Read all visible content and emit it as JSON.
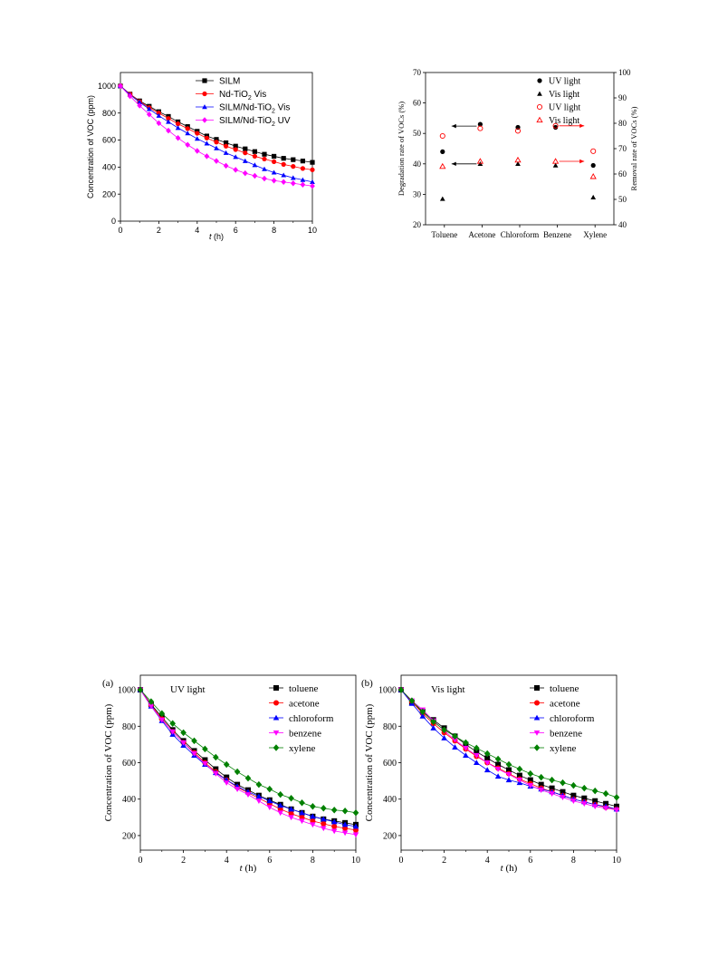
{
  "chart_data": [
    {
      "type": "line",
      "xlabel": "t (h)",
      "xlabel_var": "t",
      "xlabel_unit": " (h)",
      "ylabel": "Concentration of VOC (ppm)",
      "xlim": [
        0,
        10
      ],
      "ylim": [
        0,
        1100
      ],
      "xticks": [
        "0",
        "2",
        "4",
        "6",
        "8",
        "10"
      ],
      "yticks": [
        "0",
        "200",
        "400",
        "600",
        "800",
        "1000"
      ],
      "legend_position": "top-right",
      "x": [
        0,
        0.5,
        1,
        1.5,
        2,
        2.5,
        3,
        3.5,
        4,
        4.5,
        5,
        5.5,
        6,
        6.5,
        7,
        7.5,
        8,
        8.5,
        9,
        9.5,
        10
      ],
      "series": [
        {
          "name": "SILM",
          "color": "#000000",
          "marker": "square",
          "values": [
            1000,
            940,
            890,
            850,
            810,
            775,
            735,
            700,
            665,
            630,
            605,
            580,
            555,
            535,
            515,
            495,
            480,
            465,
            455,
            445,
            435
          ]
        },
        {
          "name": "Nd-TiO2 Vis",
          "label_parts": [
            "Nd-TiO",
            "2",
            " Vis"
          ],
          "color": "#ff0000",
          "marker": "circle",
          "values": [
            1000,
            940,
            885,
            840,
            800,
            760,
            720,
            685,
            650,
            615,
            585,
            555,
            530,
            505,
            480,
            460,
            440,
            420,
            405,
            390,
            380
          ]
        },
        {
          "name": "SILM/Nd-TiO2 Vis",
          "label_parts": [
            "SILM/Nd-TiO",
            "2",
            " Vis"
          ],
          "color": "#0000ff",
          "marker": "triangle",
          "values": [
            1000,
            935,
            880,
            830,
            780,
            735,
            690,
            650,
            610,
            575,
            540,
            505,
            475,
            445,
            415,
            385,
            360,
            340,
            320,
            305,
            290
          ]
        },
        {
          "name": "SILM/Nd-TiO2 UV",
          "label_parts": [
            "SILM/Nd-TiO",
            "2",
            " UV"
          ],
          "color": "#ff00ff",
          "marker": "diamond",
          "values": [
            1000,
            925,
            855,
            790,
            725,
            670,
            615,
            565,
            520,
            480,
            445,
            410,
            380,
            355,
            335,
            315,
            300,
            290,
            280,
            270,
            260
          ]
        }
      ]
    },
    {
      "type": "scatter",
      "ylabel": "Degradation rate of VOCs (%)",
      "y2label": "Removal rate of VOCs (%)",
      "categories": [
        "Toluene",
        "Acetone",
        "Chloroform",
        "Benzene",
        "Xylene"
      ],
      "ylim": [
        20,
        70
      ],
      "y2lim": [
        40,
        100
      ],
      "yticks": [
        "20",
        "30",
        "40",
        "50",
        "60",
        "70"
      ],
      "y2ticks": [
        "40",
        "50",
        "60",
        "70",
        "80",
        "90",
        "100"
      ],
      "legend_position": "top-right",
      "series": [
        {
          "name": "UV light",
          "axis": "left",
          "marker": "circle-filled",
          "color": "#000000",
          "values": [
            44,
            53,
            52,
            52,
            39.5
          ]
        },
        {
          "name": "Vis light",
          "axis": "left",
          "marker": "triangle-filled",
          "color": "#000000",
          "values": [
            28.5,
            40,
            40,
            39.5,
            29
          ]
        },
        {
          "name": "UV light",
          "axis": "right",
          "marker": "circle-open",
          "color": "#ff0000",
          "values": [
            75,
            78,
            77,
            79,
            69
          ]
        },
        {
          "name": "Vis light",
          "axis": "right",
          "marker": "triangle-open",
          "color": "#ff0000",
          "values": [
            63,
            65,
            65.5,
            65,
            59
          ]
        }
      ]
    },
    {
      "type": "line",
      "panel_label": "(a)",
      "annotation": "UV light",
      "xlabel": "t (h)",
      "xlabel_var": "t",
      "xlabel_unit": " (h)",
      "ylabel": "Concentration of VOC (ppm)",
      "xlim": [
        0,
        10
      ],
      "ylim": [
        120,
        1080
      ],
      "xticks": [
        "0",
        "2",
        "4",
        "6",
        "8",
        "10"
      ],
      "yticks": [
        "200",
        "400",
        "600",
        "800",
        "1000"
      ],
      "legend_position": "top-right",
      "x": [
        0,
        0.5,
        1,
        1.5,
        2,
        2.5,
        3,
        3.5,
        4,
        4.5,
        5,
        5.5,
        6,
        6.5,
        7,
        7.5,
        8,
        8.5,
        9,
        9.5,
        10
      ],
      "series": [
        {
          "name": "toluene",
          "color": "#000000",
          "marker": "square",
          "values": [
            1000,
            920,
            850,
            780,
            720,
            665,
            615,
            565,
            520,
            480,
            450,
            420,
            395,
            370,
            345,
            325,
            305,
            290,
            280,
            270,
            260
          ]
        },
        {
          "name": "acetone",
          "color": "#ff0000",
          "marker": "circle",
          "values": [
            1000,
            915,
            840,
            770,
            710,
            655,
            600,
            550,
            505,
            465,
            435,
            405,
            375,
            345,
            320,
            300,
            280,
            265,
            250,
            240,
            230
          ]
        },
        {
          "name": "chloroform",
          "color": "#0000ff",
          "marker": "triangle",
          "values": [
            1000,
            910,
            830,
            755,
            695,
            640,
            590,
            545,
            505,
            470,
            440,
            415,
            390,
            365,
            345,
            325,
            305,
            290,
            275,
            260,
            250
          ]
        },
        {
          "name": "benzene",
          "color": "#ff00ff",
          "marker": "triangle-down",
          "values": [
            1000,
            910,
            835,
            770,
            710,
            650,
            595,
            540,
            490,
            455,
            425,
            390,
            355,
            325,
            300,
            280,
            260,
            240,
            225,
            215,
            205
          ]
        },
        {
          "name": "xylene",
          "color": "#008000",
          "marker": "diamond",
          "values": [
            1000,
            935,
            870,
            815,
            765,
            720,
            675,
            630,
            590,
            550,
            515,
            480,
            455,
            425,
            405,
            380,
            360,
            350,
            340,
            335,
            325
          ]
        }
      ]
    },
    {
      "type": "line",
      "panel_label": "(b)",
      "annotation": "Vis light",
      "xlabel": "t (h)",
      "xlabel_var": "t",
      "xlabel_unit": " (h)",
      "ylabel": "Concentration of VOC (ppm)",
      "xlim": [
        0,
        10
      ],
      "ylim": [
        120,
        1080
      ],
      "xticks": [
        "0",
        "2",
        "4",
        "6",
        "8",
        "10"
      ],
      "yticks": [
        "200",
        "400",
        "600",
        "800",
        "1000"
      ],
      "legend_position": "top-right",
      "x": [
        0,
        0.5,
        1,
        1.5,
        2,
        2.5,
        3,
        3.5,
        4,
        4.5,
        5,
        5.5,
        6,
        6.5,
        7,
        7.5,
        8,
        8.5,
        9,
        9.5,
        10
      ],
      "series": [
        {
          "name": "toluene",
          "color": "#000000",
          "marker": "square",
          "values": [
            1000,
            930,
            880,
            835,
            790,
            745,
            700,
            660,
            625,
            590,
            560,
            530,
            505,
            480,
            460,
            440,
            420,
            405,
            390,
            375,
            360
          ]
        },
        {
          "name": "acetone",
          "color": "#ff0000",
          "marker": "circle",
          "values": [
            1000,
            935,
            870,
            815,
            765,
            720,
            675,
            635,
            600,
            570,
            540,
            510,
            485,
            460,
            440,
            420,
            400,
            385,
            370,
            355,
            345
          ]
        },
        {
          "name": "chloroform",
          "color": "#0000ff",
          "marker": "triangle",
          "values": [
            1000,
            925,
            855,
            790,
            735,
            685,
            640,
            600,
            560,
            525,
            505,
            490,
            470,
            455,
            440,
            420,
            400,
            385,
            370,
            360,
            345
          ]
        },
        {
          "name": "benzene",
          "color": "#ff00ff",
          "marker": "triangle-down",
          "values": [
            1000,
            940,
            890,
            830,
            775,
            725,
            680,
            640,
            600,
            565,
            535,
            505,
            475,
            450,
            430,
            410,
            390,
            375,
            360,
            350,
            340
          ]
        },
        {
          "name": "xylene",
          "color": "#008000",
          "marker": "diamond",
          "values": [
            1000,
            940,
            880,
            825,
            780,
            745,
            710,
            680,
            650,
            620,
            590,
            565,
            540,
            520,
            505,
            490,
            475,
            460,
            445,
            430,
            410
          ]
        }
      ]
    }
  ]
}
